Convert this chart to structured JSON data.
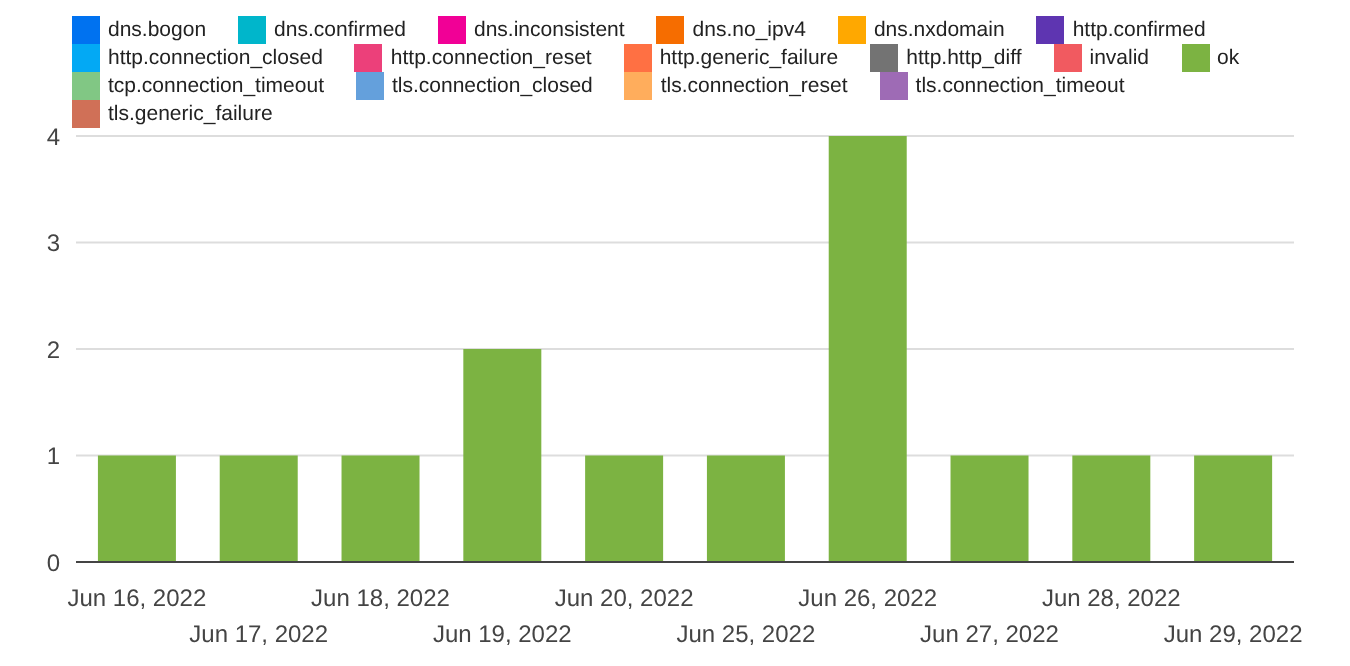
{
  "chart_data": {
    "type": "bar",
    "stacked": true,
    "categories": [
      "Jun 16, 2022",
      "Jun 17, 2022",
      "Jun 18, 2022",
      "Jun 19, 2022",
      "Jun 20, 2022",
      "Jun 25, 2022",
      "Jun 26, 2022",
      "Jun 27, 2022",
      "Jun 28, 2022",
      "Jun 29, 2022"
    ],
    "series": [
      {
        "name": "dns.bogon",
        "color": "#0072f0",
        "values": [
          0,
          0,
          0,
          0,
          0,
          0,
          0,
          0,
          0,
          0
        ]
      },
      {
        "name": "dns.confirmed",
        "color": "#00b6cb",
        "values": [
          0,
          0,
          0,
          0,
          0,
          0,
          0,
          0,
          0,
          0
        ]
      },
      {
        "name": "dns.inconsistent",
        "color": "#f10096",
        "values": [
          0,
          0,
          0,
          0,
          0,
          0,
          0,
          0,
          0,
          0
        ]
      },
      {
        "name": "dns.no_ipv4",
        "color": "#f66d00",
        "values": [
          0,
          0,
          0,
          0,
          0,
          0,
          0,
          0,
          0,
          0
        ]
      },
      {
        "name": "dns.nxdomain",
        "color": "#ffa800",
        "values": [
          0,
          0,
          0,
          0,
          0,
          0,
          0,
          0,
          0,
          0
        ]
      },
      {
        "name": "ok",
        "color": "#7cb342",
        "values": [
          1,
          1,
          1,
          2,
          1,
          1,
          4,
          1,
          1,
          1
        ]
      },
      {
        "name": "http.confirmed",
        "color": "#5e35b1",
        "values": [
          0,
          0,
          0,
          0,
          0,
          0,
          0,
          0,
          0,
          0
        ]
      },
      {
        "name": "http.connection_closed",
        "color": "#03a9f4",
        "values": [
          0,
          0,
          0,
          0,
          0,
          0,
          0,
          0,
          0,
          0
        ]
      },
      {
        "name": "http.connection_reset",
        "color": "#ec407a",
        "values": [
          0,
          0,
          0,
          0,
          0,
          0,
          0,
          0,
          0,
          0
        ]
      },
      {
        "name": "http.generic_failure",
        "color": "#ff7043",
        "values": [
          0,
          0,
          0,
          0,
          0,
          0,
          0,
          0,
          0,
          0
        ]
      },
      {
        "name": "http.http_diff",
        "color": "#737373",
        "values": [
          0,
          0,
          0,
          0,
          0,
          0,
          0,
          0,
          0,
          0
        ]
      },
      {
        "name": "invalid",
        "color": "#f15a60",
        "values": [
          0,
          0,
          0,
          0,
          0,
          0,
          0,
          0,
          0,
          0
        ]
      },
      {
        "name": "tcp.connection_timeout",
        "color": "#81c784",
        "values": [
          0,
          0,
          0,
          0,
          0,
          0,
          0,
          0,
          0,
          0
        ]
      },
      {
        "name": "tls.connection_closed",
        "color": "#64a0dc",
        "values": [
          0,
          0,
          0,
          0,
          0,
          0,
          0,
          0,
          0,
          0
        ]
      },
      {
        "name": "tls.connection_reset",
        "color": "#ffad5c",
        "values": [
          0,
          0,
          0,
          0,
          0,
          0,
          0,
          0,
          0,
          0
        ]
      },
      {
        "name": "tls.connection_timeout",
        "color": "#9e6bb5",
        "values": [
          0,
          0,
          0,
          0,
          0,
          0,
          0,
          0,
          0,
          0
        ]
      },
      {
        "name": "tls.generic_failure",
        "color": "#d07057",
        "values": [
          0,
          0,
          0,
          0,
          0,
          0,
          0,
          0,
          0,
          0
        ]
      }
    ],
    "ylim": [
      0,
      4
    ],
    "yticks": [
      0,
      1,
      2,
      3,
      4
    ],
    "grid": "y",
    "legend": "top"
  }
}
